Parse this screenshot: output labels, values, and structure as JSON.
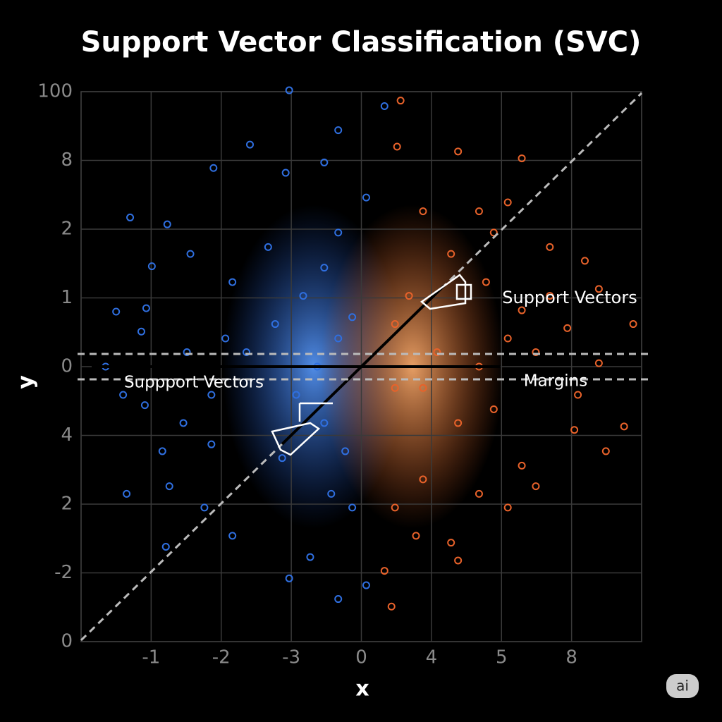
{
  "chart_data": {
    "type": "scatter",
    "title": "Support Vector Classification (SVC)",
    "x_label": "x",
    "y_label": "y",
    "annotations": [
      "Support Vectors",
      "Suppport Vectors",
      "Margins"
    ],
    "badge": "ai",
    "xlim": [
      0,
      8
    ],
    "ylim": [
      0,
      8
    ],
    "grid": true,
    "xticks": [
      {
        "value": 1,
        "label": "-1"
      },
      {
        "value": 2,
        "label": "-2"
      },
      {
        "value": 3,
        "label": "-3"
      },
      {
        "value": 4,
        "label": "0"
      },
      {
        "value": 5,
        "label": "4"
      },
      {
        "value": 6,
        "label": "5"
      },
      {
        "value": 7,
        "label": "8"
      }
    ],
    "yticks": [
      0,
      {
        "value": 1,
        "label": "-2"
      },
      2,
      {
        "value": 3,
        "label": "4"
      },
      {
        "value": 4,
        "label": "0"
      },
      {
        "value": 5,
        "label": "1"
      },
      {
        "value": 6,
        "label": "2"
      },
      {
        "value": 7,
        "label": "8"
      },
      {
        "value": 8,
        "label": "100"
      }
    ],
    "series": [
      {
        "color": "#2f6fe0",
        "x": [
          2.97,
          4.33,
          3.67,
          1.89,
          2.92,
          3.47,
          2.41,
          0.7,
          1.23,
          1.01,
          0.5,
          0.93,
          0.86,
          1.51,
          0.35,
          0.6,
          0.91,
          1.46,
          1.16,
          1.86,
          0.65,
          1.26,
          1.76,
          2.16,
          1.21,
          2.97,
          3.67,
          4.07,
          3.27,
          2.36,
          2.77,
          3.17,
          3.47,
          3.67,
          4.07,
          2.67,
          2.16,
          2.06,
          3.07,
          3.47,
          3.77,
          3.57,
          3.87,
          3.37,
          3.67,
          3.87,
          1.86,
          2.87,
          1.56
        ],
        "values": [
          8.02,
          7.79,
          7.44,
          6.89,
          6.82,
          6.97,
          7.23,
          6.17,
          6.07,
          5.46,
          4.8,
          4.85,
          4.51,
          4.21,
          4.0,
          3.59,
          3.44,
          3.18,
          2.77,
          2.87,
          2.15,
          2.26,
          1.95,
          1.54,
          1.38,
          0.92,
          0.62,
          0.82,
          1.23,
          4.21,
          4.62,
          5.03,
          5.44,
          5.95,
          6.46,
          5.74,
          5.23,
          4.41,
          3.59,
          3.18,
          2.77,
          2.15,
          1.95,
          4.0,
          4.41,
          4.72,
          3.59,
          2.67,
          5.64
        ]
      },
      {
        "color": "#e8622a",
        "x": [
          4.56,
          4.51,
          5.38,
          6.09,
          6.29,
          4.88,
          5.89,
          6.69,
          7.19,
          7.39,
          7.88,
          6.94,
          6.49,
          7.39,
          7.09,
          7.04,
          7.75,
          7.49,
          6.49,
          6.09,
          5.68,
          5.28,
          5.38,
          4.78,
          4.33,
          4.43,
          4.48,
          4.88,
          5.38,
          5.89,
          5.68,
          6.09,
          6.29,
          5.78,
          5.28,
          4.68,
          4.48,
          4.48,
          4.88,
          5.08,
          6.29,
          6.69,
          5.68
        ],
        "values": [
          7.87,
          7.2,
          7.13,
          6.39,
          7.03,
          6.26,
          5.95,
          5.74,
          5.54,
          5.13,
          4.62,
          4.56,
          4.21,
          4.05,
          3.59,
          3.08,
          3.13,
          2.77,
          2.26,
          1.95,
          2.15,
          1.44,
          1.18,
          1.54,
          1.03,
          0.51,
          1.95,
          2.36,
          3.18,
          3.38,
          4.0,
          4.41,
          4.82,
          5.23,
          5.64,
          5.03,
          4.62,
          3.69,
          3.69,
          4.21,
          2.56,
          5.03,
          6.26
        ]
      }
    ]
  }
}
